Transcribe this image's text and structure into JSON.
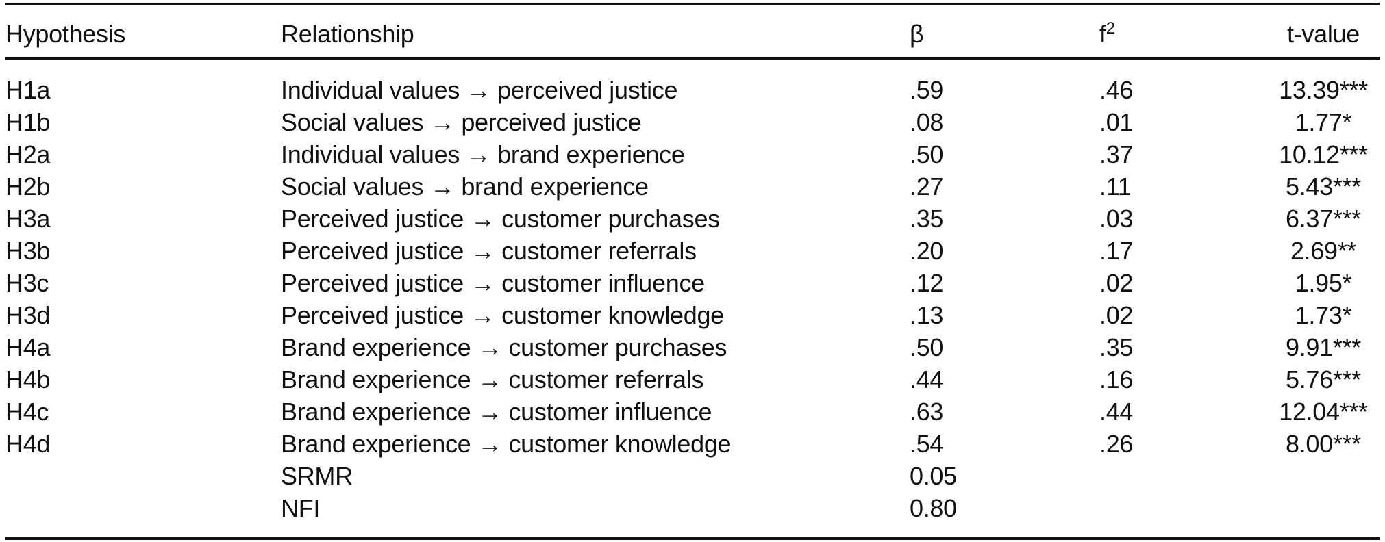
{
  "table": {
    "header": {
      "hypothesis": "Hypothesis",
      "relationship": "Relationship",
      "beta": "β",
      "f2_base": "f",
      "f2_sup": "2",
      "t": "t-value"
    },
    "rows": [
      {
        "hypothesis": "H1a",
        "relationship": "Individual values → perceived justice",
        "beta": ".59",
        "f2": ".46",
        "t": "13.39***"
      },
      {
        "hypothesis": "H1b",
        "relationship": "Social values → perceived justice",
        "beta": ".08",
        "f2": ".01",
        "t": "1.77*"
      },
      {
        "hypothesis": "H2a",
        "relationship": "Individual values → brand experience",
        "beta": ".50",
        "f2": ".37",
        "t": "10.12***"
      },
      {
        "hypothesis": "H2b",
        "relationship": "Social values → brand experience",
        "beta": ".27",
        "f2": ".11",
        "t": "5.43***"
      },
      {
        "hypothesis": "H3a",
        "relationship": "Perceived justice → customer purchases",
        "beta": ".35",
        "f2": ".03",
        "t": "6.37***"
      },
      {
        "hypothesis": "H3b",
        "relationship": "Perceived justice → customer referrals",
        "beta": ".20",
        "f2": ".17",
        "t": "2.69**"
      },
      {
        "hypothesis": "H3c",
        "relationship": "Perceived justice → customer influence",
        "beta": ".12",
        "f2": ".02",
        "t": "1.95*"
      },
      {
        "hypothesis": "H3d",
        "relationship": "Perceived justice → customer knowledge",
        "beta": ".13",
        "f2": ".02",
        "t": "1.73*"
      },
      {
        "hypothesis": "H4a",
        "relationship": "Brand experience → customer purchases",
        "beta": ".50",
        "f2": ".35",
        "t": "9.91***"
      },
      {
        "hypothesis": "H4b",
        "relationship": "Brand experience → customer referrals",
        "beta": ".44",
        "f2": ".16",
        "t": "5.76***"
      },
      {
        "hypothesis": "H4c",
        "relationship": "Brand experience → customer influence",
        "beta": ".63",
        "f2": ".44",
        "t": "12.04***"
      },
      {
        "hypothesis": "H4d",
        "relationship": "Brand experience → customer knowledge",
        "beta": ".54",
        "f2": ".26",
        "t": "8.00***"
      },
      {
        "hypothesis": "",
        "relationship": "SRMR",
        "beta": "0.05",
        "f2": "",
        "t": ""
      },
      {
        "hypothesis": "",
        "relationship": "NFI",
        "beta": "0.80",
        "f2": "",
        "t": ""
      }
    ],
    "column_keys": [
      "hypothesis",
      "relationship",
      "beta",
      "f2",
      "t"
    ]
  },
  "colors": {
    "text": "#111111",
    "rule": "#111111",
    "background": "#ffffff"
  }
}
